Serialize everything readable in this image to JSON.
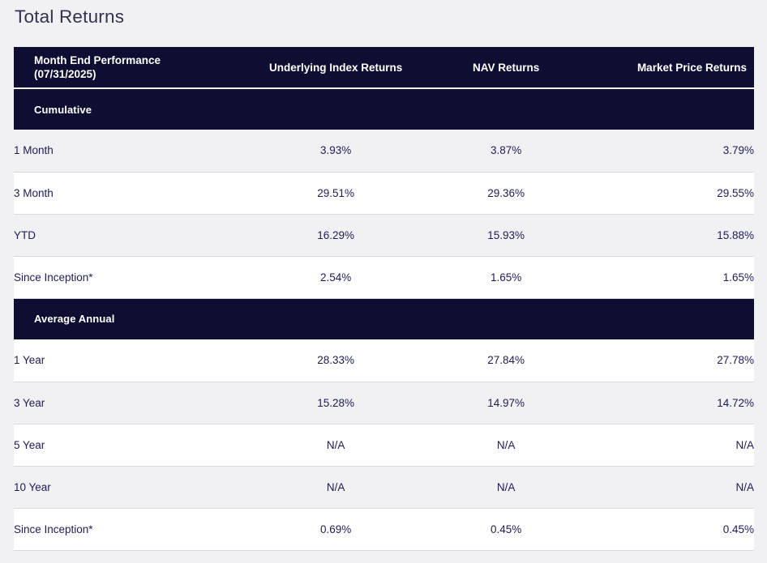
{
  "page_title": "Total Returns",
  "colors": {
    "header_navy": "#0e0e33",
    "row_alt_gray": "#f1f1f4",
    "row_white": "#ffffff",
    "cell_text_navy": "#1d1d56",
    "title_text": "#32324e",
    "row_border": "#d9dade",
    "header_text": "#ffffff"
  },
  "table": {
    "header": {
      "col1_line1": "Month End Performance",
      "col1_line2": "(07/31/2025)",
      "col2": "Underlying Index Returns",
      "col3": "NAV Returns",
      "col4": "Market Price Returns"
    },
    "sections": [
      {
        "title": "Cumulative",
        "rows": [
          {
            "label": "1 Month",
            "underlying": "3.93%",
            "nav": "3.87%",
            "market": "3.79%"
          },
          {
            "label": "3 Month",
            "underlying": "29.51%",
            "nav": "29.36%",
            "market": "29.55%"
          },
          {
            "label": "YTD",
            "underlying": "16.29%",
            "nav": "15.93%",
            "market": "15.88%"
          },
          {
            "label": "Since Inception*",
            "underlying": "2.54%",
            "nav": "1.65%",
            "market": "1.65%"
          }
        ]
      },
      {
        "title": "Average Annual",
        "rows": [
          {
            "label": "1 Year",
            "underlying": "28.33%",
            "nav": "27.84%",
            "market": "27.78%"
          },
          {
            "label": "3 Year",
            "underlying": "15.28%",
            "nav": "14.97%",
            "market": "14.72%"
          },
          {
            "label": "5 Year",
            "underlying": "N/A",
            "nav": "N/A",
            "market": "N/A"
          },
          {
            "label": "10 Year",
            "underlying": "N/A",
            "nav": "N/A",
            "market": "N/A"
          },
          {
            "label": "Since Inception*",
            "underlying": "0.69%",
            "nav": "0.45%",
            "market": "0.45%"
          }
        ]
      }
    ]
  }
}
